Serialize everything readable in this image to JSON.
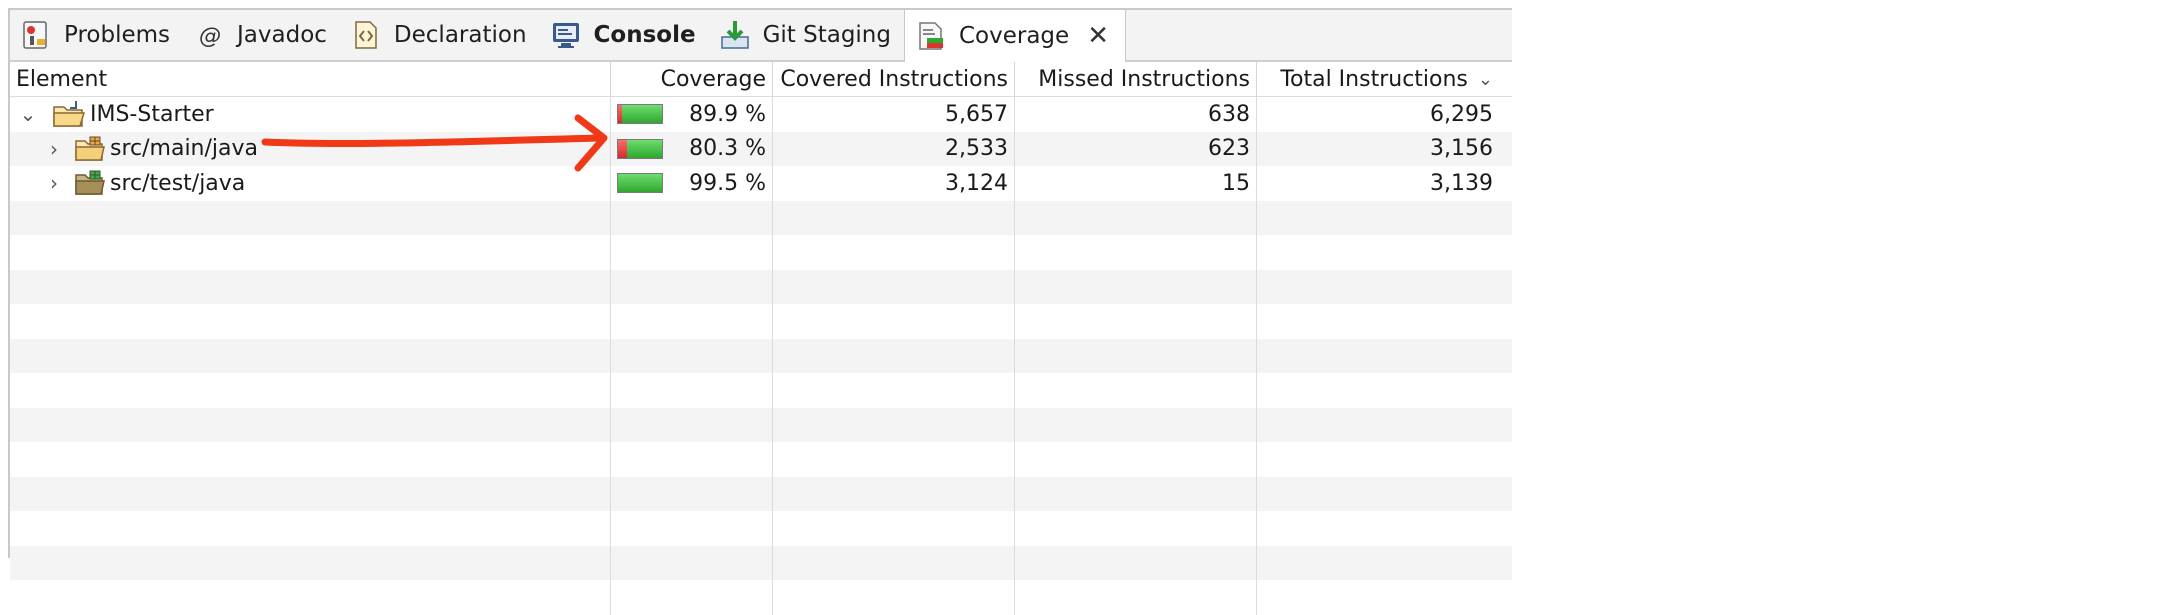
{
  "tabs": [
    {
      "label": "Problems",
      "icon": "problems-icon",
      "bold": false,
      "active": false
    },
    {
      "label": "Javadoc",
      "icon": "javadoc-icon",
      "bold": false,
      "active": false
    },
    {
      "label": "Declaration",
      "icon": "declaration-icon",
      "bold": false,
      "active": false
    },
    {
      "label": "Console",
      "icon": "console-icon",
      "bold": true,
      "active": false
    },
    {
      "label": "Git Staging",
      "icon": "git-staging-icon",
      "bold": false,
      "active": false
    },
    {
      "label": "Coverage",
      "icon": "coverage-icon",
      "bold": false,
      "active": true,
      "close": "✕"
    }
  ],
  "table": {
    "headers": {
      "element": "Element",
      "coverage": "Coverage",
      "covered": "Covered Instructions",
      "missed": "Missed Instructions",
      "total": "Total Instructions",
      "sort_icon": "chevron-down-icon"
    },
    "rows": [
      {
        "name": "IMS-Starter",
        "expanded": true,
        "icon": "project-folder-icon",
        "coverage": "89.9 %",
        "coverage_value": 0.899,
        "covered": "5,657",
        "missed": "638",
        "total": "6,295"
      },
      {
        "name": "src/main/java",
        "expanded": false,
        "icon": "source-folder-icon",
        "coverage": "80.3 %",
        "coverage_value": 0.803,
        "covered": "2,533",
        "missed": "623",
        "total": "3,156"
      },
      {
        "name": "src/test/java",
        "expanded": false,
        "icon": "test-source-folder-icon",
        "coverage": "99.5 %",
        "coverage_value": 0.995,
        "covered": "3,124",
        "missed": "15",
        "total": "3,139"
      }
    ]
  },
  "colors": {
    "annotation_arrow": "#f03a17",
    "covered": "#3cb83c",
    "missed": "#e03030"
  }
}
